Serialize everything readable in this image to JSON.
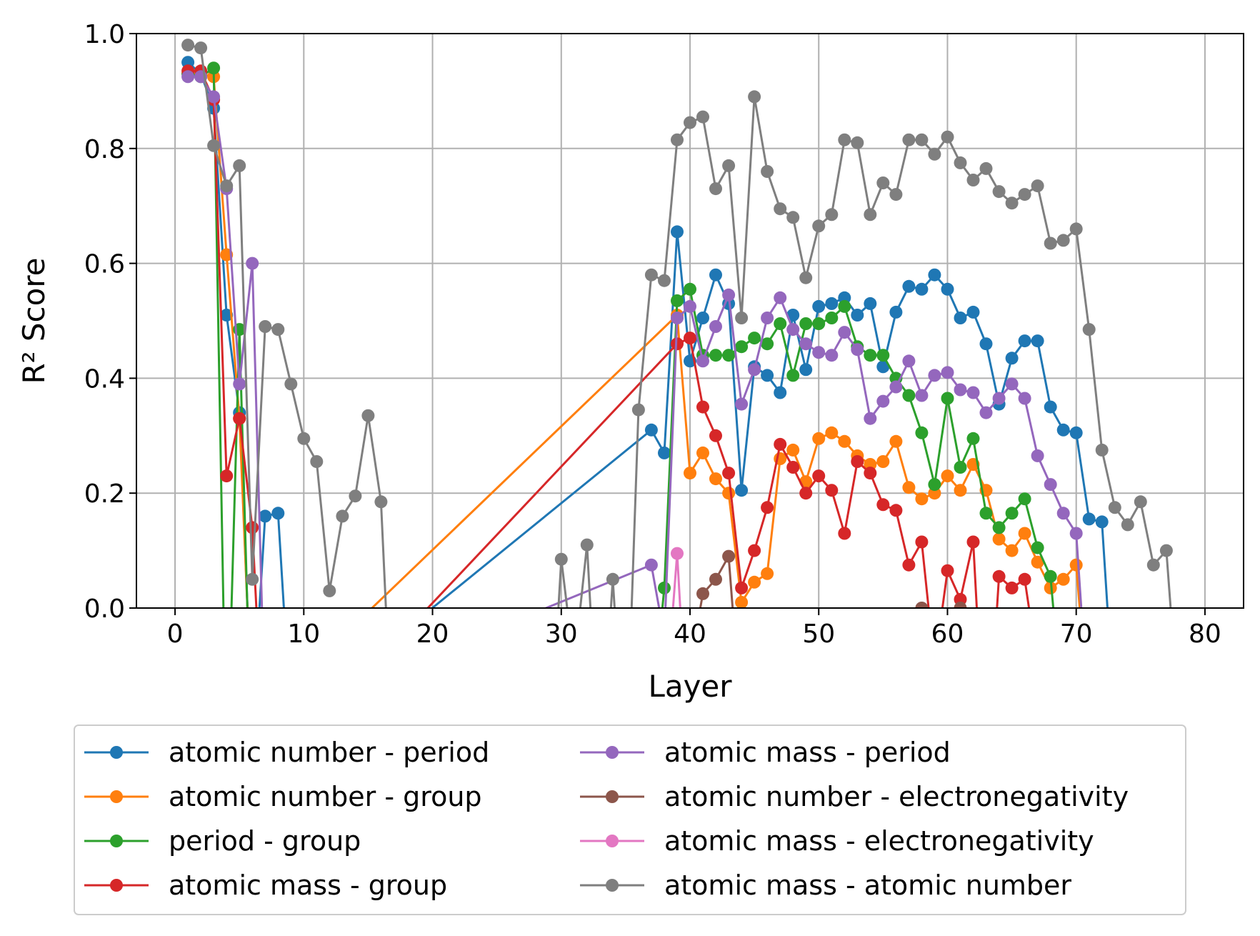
{
  "chart_data": {
    "type": "line",
    "xlabel": "Layer",
    "ylabel": "R² Score",
    "xlim": [
      -3,
      83
    ],
    "ylim": [
      0,
      1.0
    ],
    "xticks": [
      0,
      10,
      20,
      30,
      40,
      50,
      60,
      70,
      80
    ],
    "yticks": [
      0.0,
      0.2,
      0.4,
      0.6,
      0.8,
      1.0
    ],
    "ytick_labels": [
      "0.0",
      "0.2",
      "0.4",
      "0.6",
      "0.8",
      "1.0"
    ],
    "grid": true,
    "legend_position": "below",
    "series": [
      {
        "name": "atomic number - period",
        "color": "#1f77b4",
        "points": [
          [
            1,
            0.95
          ],
          [
            2,
            0.93
          ],
          [
            3,
            0.87
          ],
          [
            4,
            0.51
          ],
          [
            5,
            0.34
          ],
          [
            6,
            -0.2
          ],
          [
            7,
            0.16
          ],
          [
            8,
            0.165
          ],
          [
            9,
            -0.2
          ],
          [
            37,
            0.31
          ],
          [
            38,
            0.27
          ],
          [
            39,
            0.655
          ],
          [
            40,
            0.43
          ],
          [
            41,
            0.505
          ],
          [
            42,
            0.58
          ],
          [
            43,
            0.53
          ],
          [
            44,
            0.205
          ],
          [
            45,
            0.42
          ],
          [
            46,
            0.405
          ],
          [
            47,
            0.375
          ],
          [
            48,
            0.51
          ],
          [
            49,
            0.415
          ],
          [
            50,
            0.525
          ],
          [
            51,
            0.53
          ],
          [
            52,
            0.54
          ],
          [
            53,
            0.51
          ],
          [
            54,
            0.53
          ],
          [
            55,
            0.42
          ],
          [
            56,
            0.515
          ],
          [
            57,
            0.56
          ],
          [
            58,
            0.555
          ],
          [
            59,
            0.58
          ],
          [
            60,
            0.555
          ],
          [
            61,
            0.505
          ],
          [
            62,
            0.515
          ],
          [
            63,
            0.46
          ],
          [
            64,
            0.355
          ],
          [
            65,
            0.435
          ],
          [
            66,
            0.465
          ],
          [
            67,
            0.465
          ],
          [
            68,
            0.35
          ],
          [
            69,
            0.31
          ],
          [
            70,
            0.305
          ],
          [
            71,
            0.155
          ],
          [
            72,
            0.15
          ],
          [
            73,
            -0.2
          ]
        ]
      },
      {
        "name": "atomic number - group",
        "color": "#ff7f0e",
        "points": [
          [
            1,
            0.93
          ],
          [
            2,
            0.93
          ],
          [
            3,
            0.925
          ],
          [
            4,
            0.615
          ],
          [
            5,
            0.33
          ],
          [
            6,
            -0.2
          ],
          [
            39,
            0.51
          ],
          [
            40,
            0.235
          ],
          [
            41,
            0.27
          ],
          [
            42,
            0.225
          ],
          [
            43,
            0.2
          ],
          [
            44,
            0.01
          ],
          [
            45,
            0.045
          ],
          [
            46,
            0.06
          ],
          [
            47,
            0.26
          ],
          [
            48,
            0.275
          ],
          [
            49,
            0.22
          ],
          [
            50,
            0.295
          ],
          [
            51,
            0.305
          ],
          [
            52,
            0.29
          ],
          [
            53,
            0.265
          ],
          [
            54,
            0.25
          ],
          [
            55,
            0.255
          ],
          [
            56,
            0.29
          ],
          [
            57,
            0.21
          ],
          [
            58,
            0.19
          ],
          [
            59,
            0.2
          ],
          [
            60,
            0.23
          ],
          [
            61,
            0.205
          ],
          [
            62,
            0.25
          ],
          [
            63,
            0.205
          ],
          [
            64,
            0.12
          ],
          [
            65,
            0.1
          ],
          [
            66,
            0.13
          ],
          [
            67,
            0.08
          ],
          [
            68,
            0.035
          ],
          [
            69,
            0.05
          ],
          [
            70,
            0.075
          ],
          [
            71,
            -0.2
          ]
        ]
      },
      {
        "name": "period - group",
        "color": "#2ca02c",
        "points": [
          [
            1,
            0.93
          ],
          [
            2,
            0.925
          ],
          [
            3,
            0.94
          ],
          [
            4,
            -0.3
          ],
          [
            5,
            0.485
          ],
          [
            6,
            -0.3
          ],
          [
            37,
            -0.2
          ],
          [
            38,
            0.035
          ],
          [
            39,
            0.535
          ],
          [
            40,
            0.555
          ],
          [
            41,
            0.44
          ],
          [
            42,
            0.44
          ],
          [
            43,
            0.44
          ],
          [
            44,
            0.455
          ],
          [
            45,
            0.47
          ],
          [
            46,
            0.46
          ],
          [
            47,
            0.495
          ],
          [
            48,
            0.405
          ],
          [
            49,
            0.495
          ],
          [
            50,
            0.495
          ],
          [
            51,
            0.505
          ],
          [
            52,
            0.525
          ],
          [
            53,
            0.455
          ],
          [
            54,
            0.44
          ],
          [
            55,
            0.44
          ],
          [
            56,
            0.4
          ],
          [
            57,
            0.37
          ],
          [
            58,
            0.305
          ],
          [
            59,
            0.215
          ],
          [
            60,
            0.365
          ],
          [
            61,
            0.245
          ],
          [
            62,
            0.295
          ],
          [
            63,
            0.165
          ],
          [
            64,
            0.14
          ],
          [
            65,
            0.165
          ],
          [
            66,
            0.19
          ],
          [
            67,
            0.105
          ],
          [
            68,
            0.055
          ],
          [
            69,
            -0.2
          ]
        ]
      },
      {
        "name": "atomic mass - group",
        "color": "#d62728",
        "points": [
          [
            1,
            0.935
          ],
          [
            2,
            0.935
          ],
          [
            3,
            0.885
          ],
          [
            4,
            0.23
          ],
          [
            5,
            0.33
          ],
          [
            6,
            0.14
          ],
          [
            7,
            -0.3
          ],
          [
            39,
            0.46
          ],
          [
            40,
            0.47
          ],
          [
            41,
            0.35
          ],
          [
            42,
            0.3
          ],
          [
            43,
            0.235
          ],
          [
            44,
            0.035
          ],
          [
            45,
            0.1
          ],
          [
            46,
            0.175
          ],
          [
            47,
            0.285
          ],
          [
            48,
            0.245
          ],
          [
            49,
            0.2
          ],
          [
            50,
            0.23
          ],
          [
            51,
            0.205
          ],
          [
            52,
            0.13
          ],
          [
            53,
            0.255
          ],
          [
            54,
            0.235
          ],
          [
            55,
            0.18
          ],
          [
            56,
            0.17
          ],
          [
            57,
            0.075
          ],
          [
            58,
            0.115
          ],
          [
            59,
            -0.1
          ],
          [
            60,
            0.065
          ],
          [
            61,
            0.015
          ],
          [
            62,
            0.115
          ],
          [
            63,
            -0.3
          ],
          [
            64,
            0.055
          ],
          [
            65,
            0.035
          ],
          [
            66,
            0.05
          ],
          [
            67,
            -0.1
          ]
        ]
      },
      {
        "name": "atomic mass - period",
        "color": "#9467bd",
        "points": [
          [
            1,
            0.925
          ],
          [
            2,
            0.925
          ],
          [
            3,
            0.89
          ],
          [
            4,
            0.73
          ],
          [
            5,
            0.39
          ],
          [
            6,
            0.6
          ],
          [
            7,
            -0.2
          ],
          [
            37,
            0.075
          ],
          [
            38,
            -0.05
          ],
          [
            39,
            0.505
          ],
          [
            40,
            0.525
          ],
          [
            41,
            0.43
          ],
          [
            42,
            0.49
          ],
          [
            43,
            0.545
          ],
          [
            44,
            0.355
          ],
          [
            45,
            0.415
          ],
          [
            46,
            0.505
          ],
          [
            47,
            0.54
          ],
          [
            48,
            0.485
          ],
          [
            49,
            0.46
          ],
          [
            50,
            0.445
          ],
          [
            51,
            0.44
          ],
          [
            52,
            0.48
          ],
          [
            53,
            0.45
          ],
          [
            54,
            0.33
          ],
          [
            55,
            0.36
          ],
          [
            56,
            0.385
          ],
          [
            57,
            0.43
          ],
          [
            58,
            0.37
          ],
          [
            59,
            0.405
          ],
          [
            60,
            0.41
          ],
          [
            61,
            0.38
          ],
          [
            62,
            0.375
          ],
          [
            63,
            0.34
          ],
          [
            64,
            0.365
          ],
          [
            65,
            0.39
          ],
          [
            66,
            0.365
          ],
          [
            67,
            0.265
          ],
          [
            68,
            0.215
          ],
          [
            69,
            0.165
          ],
          [
            70,
            0.13
          ],
          [
            71,
            -0.2
          ]
        ]
      },
      {
        "name": "atomic number - electronegativity",
        "color": "#8c564b",
        "points": [
          [
            40,
            -0.1
          ],
          [
            41,
            0.025
          ],
          [
            42,
            0.05
          ],
          [
            43,
            0.09
          ],
          [
            44,
            -0.2
          ],
          [
            57,
            -0.1
          ],
          [
            58,
            0.0
          ],
          [
            59,
            -0.1
          ],
          [
            60,
            -0.1
          ],
          [
            61,
            0.0
          ],
          [
            62,
            -0.1
          ]
        ]
      },
      {
        "name": "atomic mass - electronegativity",
        "color": "#e377c2",
        "points": [
          [
            38,
            -0.2
          ],
          [
            39,
            0.095
          ],
          [
            40,
            -0.3
          ]
        ]
      },
      {
        "name": "atomic mass - atomic number",
        "color": "#7f7f7f",
        "points": [
          [
            1,
            0.98
          ],
          [
            2,
            0.975
          ],
          [
            3,
            0.805
          ],
          [
            4,
            0.735
          ],
          [
            5,
            0.77
          ],
          [
            6,
            0.05
          ],
          [
            7,
            0.49
          ],
          [
            8,
            0.485
          ],
          [
            9,
            0.39
          ],
          [
            10,
            0.295
          ],
          [
            11,
            0.255
          ],
          [
            12,
            0.03
          ],
          [
            13,
            0.16
          ],
          [
            14,
            0.195
          ],
          [
            15,
            0.335
          ],
          [
            16,
            0.185
          ],
          [
            17,
            -0.3
          ],
          [
            29,
            -0.3
          ],
          [
            30,
            0.085
          ],
          [
            31,
            -0.1
          ],
          [
            32,
            0.11
          ],
          [
            33,
            -0.3
          ],
          [
            34,
            0.05
          ],
          [
            35,
            -0.3
          ],
          [
            36,
            0.345
          ],
          [
            37,
            0.58
          ],
          [
            38,
            0.57
          ],
          [
            39,
            0.815
          ],
          [
            40,
            0.845
          ],
          [
            41,
            0.855
          ],
          [
            42,
            0.73
          ],
          [
            43,
            0.77
          ],
          [
            44,
            0.505
          ],
          [
            45,
            0.89
          ],
          [
            46,
            0.76
          ],
          [
            47,
            0.695
          ],
          [
            48,
            0.68
          ],
          [
            49,
            0.575
          ],
          [
            50,
            0.665
          ],
          [
            51,
            0.685
          ],
          [
            52,
            0.815
          ],
          [
            53,
            0.81
          ],
          [
            54,
            0.685
          ],
          [
            55,
            0.74
          ],
          [
            56,
            0.72
          ],
          [
            57,
            0.815
          ],
          [
            58,
            0.815
          ],
          [
            59,
            0.79
          ],
          [
            60,
            0.82
          ],
          [
            61,
            0.775
          ],
          [
            62,
            0.745
          ],
          [
            63,
            0.765
          ],
          [
            64,
            0.725
          ],
          [
            65,
            0.705
          ],
          [
            66,
            0.72
          ],
          [
            67,
            0.735
          ],
          [
            68,
            0.635
          ],
          [
            69,
            0.64
          ],
          [
            70,
            0.66
          ],
          [
            71,
            0.485
          ],
          [
            72,
            0.275
          ],
          [
            73,
            0.175
          ],
          [
            74,
            0.145
          ],
          [
            75,
            0.185
          ],
          [
            76,
            0.075
          ],
          [
            77,
            0.1
          ],
          [
            78,
            -0.2
          ]
        ]
      }
    ],
    "legend_columns": [
      [
        "atomic number - period",
        "atomic number - group",
        "period - group",
        "atomic mass - group"
      ],
      [
        "atomic mass - period",
        "atomic number - electronegativity",
        "atomic mass - electronegativity",
        "atomic mass - atomic number"
      ]
    ]
  }
}
